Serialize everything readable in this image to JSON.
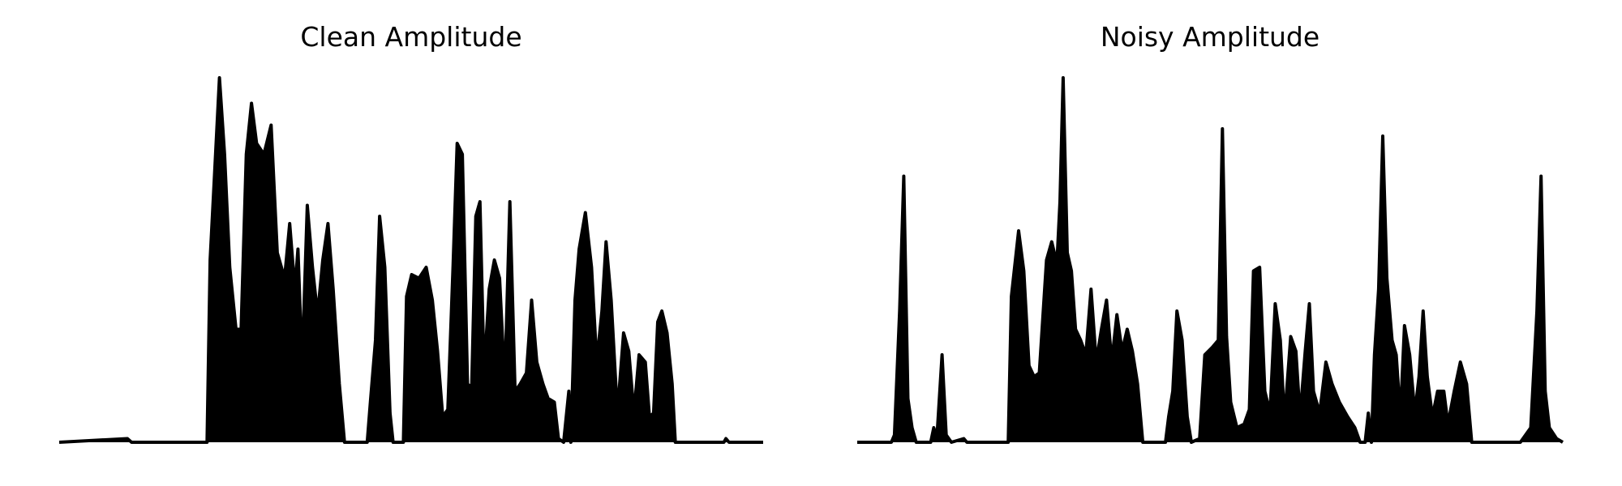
{
  "chart_data": [
    {
      "type": "line",
      "title": "Clean Amplitude",
      "color": "#000000",
      "xlim": [
        0,
        681
      ],
      "ylim": [
        0,
        1
      ],
      "x": [
        0,
        66,
        70,
        143,
        146,
        150,
        155,
        160,
        165,
        171,
        176,
        181,
        186,
        191,
        198,
        205,
        211,
        218,
        223,
        228,
        231,
        235,
        240,
        245,
        250,
        255,
        260,
        265,
        271,
        276,
        298,
        301,
        306,
        310,
        315,
        320,
        323,
        333,
        336,
        341,
        348,
        355,
        361,
        366,
        371,
        376,
        381,
        385,
        390,
        395,
        399,
        403,
        407,
        411,
        416,
        421,
        426,
        431,
        436,
        441,
        446,
        452,
        457,
        462,
        468,
        473,
        479,
        483,
        488,
        493,
        495,
        499,
        503,
        509,
        515,
        520,
        525,
        529,
        534,
        540,
        546,
        551,
        556,
        561,
        567,
        571,
        575,
        579,
        583,
        588,
        593,
        596,
        643,
        645,
        648,
        681
      ],
      "values": [
        0,
        0.01,
        0,
        0,
        0.5,
        0.72,
        1.0,
        0.79,
        0.48,
        0.31,
        0.31,
        0.79,
        0.93,
        0.82,
        0.79,
        0.87,
        0.52,
        0.45,
        0.6,
        0.42,
        0.53,
        0.21,
        0.65,
        0.48,
        0.35,
        0.5,
        0.6,
        0.42,
        0.16,
        0,
        0,
        0.11,
        0.28,
        0.62,
        0.48,
        0.08,
        0,
        0,
        0.4,
        0.46,
        0.45,
        0.48,
        0.39,
        0.25,
        0.07,
        0.09,
        0.48,
        0.82,
        0.79,
        0.16,
        0.15,
        0.62,
        0.66,
        0.19,
        0.42,
        0.5,
        0.45,
        0.16,
        0.66,
        0.14,
        0.16,
        0.19,
        0.39,
        0.22,
        0.16,
        0.12,
        0.11,
        0.01,
        0,
        0.14,
        0,
        0.39,
        0.53,
        0.63,
        0.48,
        0.22,
        0.36,
        0.55,
        0.39,
        0.08,
        0.3,
        0.25,
        0.08,
        0.24,
        0.22,
        0.07,
        0.08,
        0.33,
        0.36,
        0.3,
        0.16,
        0,
        0,
        0.01,
        0,
        0
      ]
    },
    {
      "type": "line",
      "title": "Noisy Amplitude",
      "color": "#000000",
      "xlim": [
        0,
        682
      ],
      "ylim": [
        0,
        1
      ],
      "x": [
        0,
        33,
        36,
        41,
        45,
        49,
        53,
        57,
        71,
        74,
        77,
        82,
        86,
        91,
        103,
        106,
        146,
        149,
        156,
        161,
        166,
        171,
        176,
        183,
        188,
        193,
        196,
        199,
        203,
        207,
        211,
        216,
        221,
        226,
        231,
        236,
        241,
        246,
        251,
        256,
        261,
        266,
        271,
        276,
        298,
        301,
        305,
        309,
        314,
        319,
        323,
        331,
        336,
        343,
        349,
        353,
        357,
        361,
        367,
        374,
        379,
        383,
        389,
        394,
        399,
        404,
        409,
        413,
        419,
        424,
        428,
        433,
        437,
        441,
        447,
        453,
        459,
        466,
        474,
        481,
        486,
        491,
        494,
        497,
        500,
        504,
        508,
        512,
        517,
        521,
        525,
        529,
        534,
        539,
        543,
        547,
        551,
        556,
        561,
        567,
        571,
        577,
        583,
        589,
        594,
        641,
        646,
        651,
        657,
        661,
        665,
        669,
        676,
        682
      ],
      "values": [
        0,
        0,
        0.02,
        0.36,
        0.73,
        0.12,
        0.04,
        0,
        0,
        0.04,
        0.01,
        0.24,
        0.02,
        0,
        0.01,
        0,
        0,
        0.4,
        0.58,
        0.47,
        0.21,
        0.18,
        0.19,
        0.5,
        0.55,
        0.49,
        0.66,
        1.0,
        0.52,
        0.47,
        0.31,
        0.28,
        0.24,
        0.42,
        0.22,
        0.31,
        0.39,
        0.22,
        0.35,
        0.25,
        0.31,
        0.25,
        0.16,
        0,
        0,
        0.07,
        0.14,
        0.36,
        0.28,
        0.07,
        0,
        0.01,
        0.24,
        0.26,
        0.28,
        0.86,
        0.29,
        0.11,
        0.04,
        0.05,
        0.09,
        0.47,
        0.48,
        0.14,
        0.08,
        0.38,
        0.28,
        0.06,
        0.29,
        0.25,
        0.07,
        0.25,
        0.38,
        0.14,
        0.08,
        0.22,
        0.16,
        0.11,
        0.07,
        0.04,
        0,
        0,
        0.08,
        0,
        0.24,
        0.42,
        0.84,
        0.45,
        0.28,
        0.24,
        0.07,
        0.32,
        0.24,
        0.08,
        0.18,
        0.36,
        0.18,
        0.07,
        0.14,
        0.14,
        0.05,
        0.14,
        0.22,
        0.16,
        0,
        0,
        0.02,
        0.04,
        0.36,
        0.73,
        0.14,
        0.04,
        0.01,
        0
      ]
    }
  ]
}
